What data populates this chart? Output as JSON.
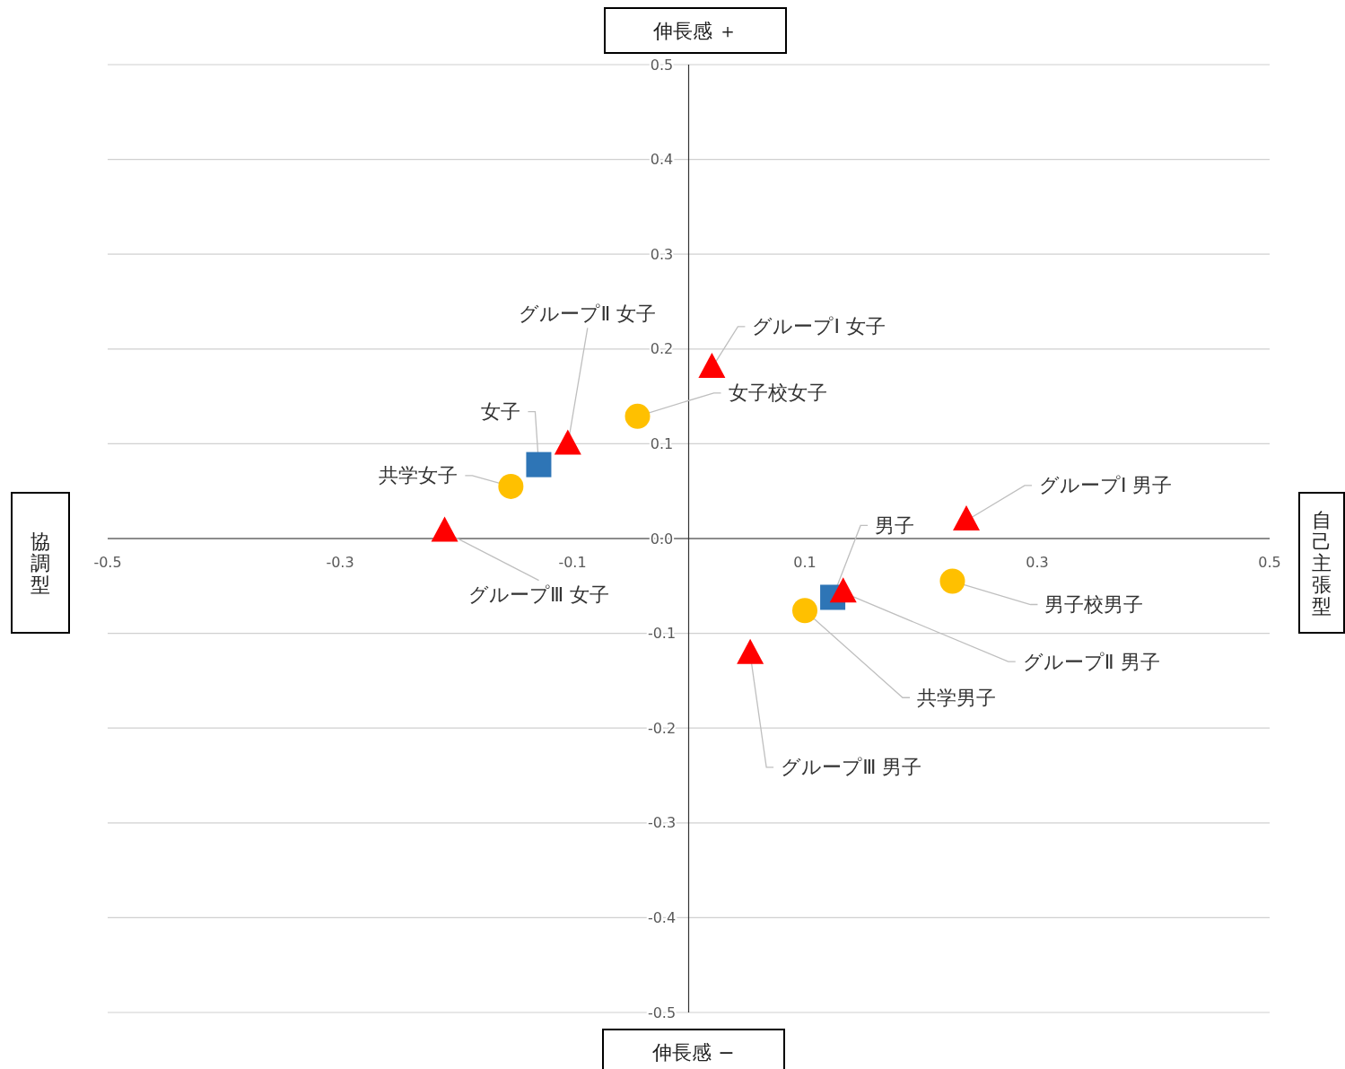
{
  "chart_data": {
    "type": "scatter",
    "xlim": [
      -0.5,
      0.5
    ],
    "ylim": [
      -0.5,
      0.5
    ],
    "xticks": [
      -0.5,
      -0.3,
      -0.1,
      0.1,
      0.3,
      0.5
    ],
    "yticks": [
      0.5,
      0.4,
      0.3,
      0.2,
      0.1,
      {
        "value": 0,
        "label": "0.0"
      },
      -0.1,
      -0.2,
      -0.3,
      -0.4,
      -0.5
    ],
    "grid": "y",
    "series": [
      {
        "type": "scatter",
        "marker": "square",
        "color": "#2e75b6",
        "x": [
          -0.129,
          0.124
        ],
        "values": [
          0.078,
          -0.062
        ]
      },
      {
        "type": "scatter",
        "marker": "circle",
        "color": "#ffc000",
        "x": [
          -0.153,
          -0.044,
          0.1,
          0.227
        ],
        "values": [
          0.055,
          0.129,
          -0.076,
          -0.045
        ]
      },
      {
        "type": "scatter",
        "marker": "triangle",
        "color": "#ff0000",
        "x": [
          0.02,
          -0.104,
          -0.21,
          0.239,
          0.133,
          0.053
        ],
        "values": [
          0.18,
          0.099,
          0.007,
          0.019,
          -0.057,
          -0.122
        ]
      }
    ],
    "annotations": [
      "伸長感 ＋",
      "伸長感 −",
      "協調型",
      "自己主張型",
      {
        "text": "女子",
        "x": -0.129,
        "y": 0.078
      },
      {
        "text": "男子",
        "x": 0.124,
        "y": -0.062
      },
      {
        "text": "共学女子",
        "x": -0.153,
        "y": 0.055
      },
      {
        "text": "女子校女子",
        "x": -0.044,
        "y": 0.129
      },
      {
        "text": "共学男子",
        "x": 0.1,
        "y": -0.076
      },
      {
        "text": "男子校男子",
        "x": 0.227,
        "y": -0.045
      },
      {
        "text": "グループⅠ 女子",
        "x": 0.02,
        "y": 0.18
      },
      {
        "text": "グループⅡ 女子",
        "x": -0.104,
        "y": 0.099
      },
      {
        "text": "グループⅢ 女子",
        "x": -0.21,
        "y": 0.007
      },
      {
        "text": "グループⅠ 男子",
        "x": 0.239,
        "y": 0.019
      },
      {
        "text": "グループⅡ 男子",
        "x": 0.133,
        "y": -0.057
      },
      {
        "text": "グループⅢ 男子",
        "x": 0.053,
        "y": -0.122
      }
    ]
  }
}
